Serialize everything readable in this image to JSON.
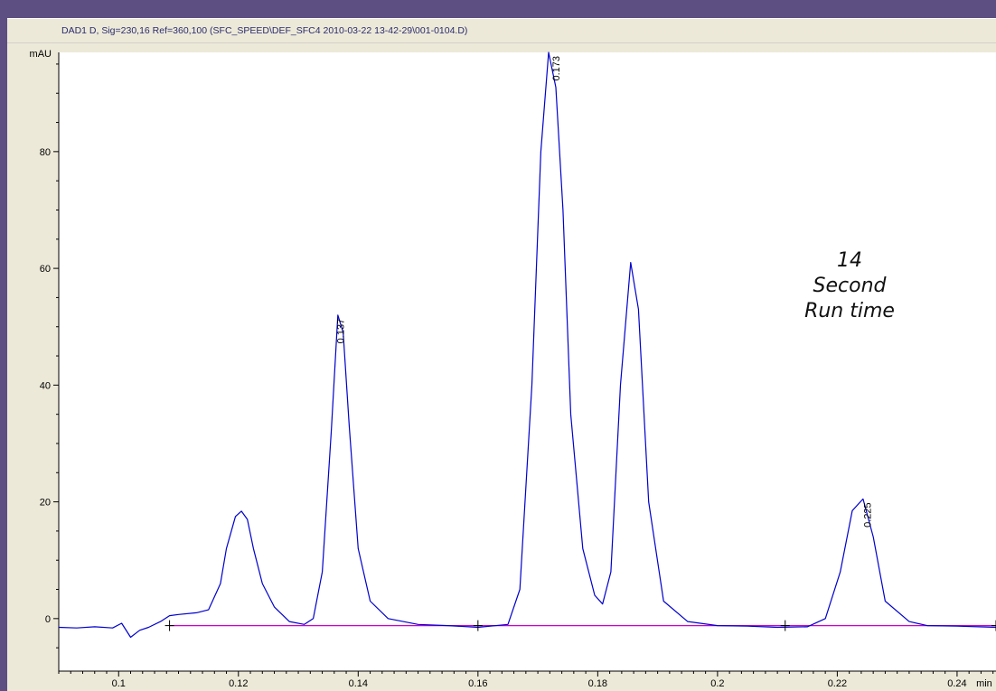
{
  "header": {
    "title": "DAD1 D, Sig=230,16 Ref=360,100 (SFC_SPEED\\DEF_SFC4 2010-03-22 13-42-29\\001-0104.D)"
  },
  "annotation": {
    "line1": "14",
    "line2": "Second",
    "line3": "Run time"
  },
  "chart_data": {
    "type": "line",
    "title": "DAD1 D, Sig=230,16 Ref=360,100 (SFC_SPEED\\DEF_SFC4 2010-03-22 13-42-29\\001-0104.D)",
    "xlabel": "min",
    "ylabel": "mAU",
    "xlim": [
      0.09,
      0.2465
    ],
    "ylim": [
      -9,
      97
    ],
    "x_ticks": [
      0.1,
      0.12,
      0.14,
      0.16,
      0.18,
      0.2,
      0.22,
      0.24
    ],
    "x_tick_labels": [
      "0.1",
      "0.12",
      "0.14",
      "0.16",
      "0.18",
      "0.2",
      "0.22",
      "0.24"
    ],
    "y_ticks": [
      0,
      20,
      40,
      60,
      80
    ],
    "y_tick_labels": [
      "0",
      "20",
      "40",
      "60",
      "80"
    ],
    "baseline_y": -1.2,
    "grid": false,
    "series": [
      {
        "color": "#0000cc",
        "x": [
          0.09,
          0.093,
          0.096,
          0.099,
          0.1005,
          0.102,
          0.1035,
          0.105,
          0.107,
          0.1085,
          0.11,
          0.113,
          0.115,
          0.117,
          0.118,
          0.1195,
          0.1205,
          0.1215,
          0.1225,
          0.124,
          0.126,
          0.1285,
          0.131,
          0.1325,
          0.134,
          0.1355,
          0.1366,
          0.1375,
          0.1385,
          0.14,
          0.142,
          0.145,
          0.15,
          0.155,
          0.16,
          0.165,
          0.167,
          0.169,
          0.1705,
          0.1718,
          0.173,
          0.1742,
          0.1755,
          0.1775,
          0.1795,
          0.1808,
          0.1822,
          0.1838,
          0.1855,
          0.1868,
          0.1885,
          0.191,
          0.195,
          0.2,
          0.205,
          0.21,
          0.215,
          0.218,
          0.2205,
          0.2225,
          0.2243,
          0.226,
          0.228,
          0.232,
          0.235,
          0.24,
          0.2465
        ],
        "y": [
          -1.5,
          -1.6,
          -1.4,
          -1.6,
          -0.8,
          -3.2,
          -2,
          -1.5,
          -0.5,
          0.5,
          0.7,
          1,
          1.5,
          6,
          12,
          17.5,
          18.4,
          17,
          12,
          6,
          2,
          -0.5,
          -1,
          0,
          8,
          32,
          52,
          49,
          33,
          12,
          3,
          0,
          -1,
          -1.2,
          -1.5,
          -1,
          5,
          40,
          80,
          97,
          91,
          70,
          35,
          12,
          4,
          2.5,
          8,
          40,
          61,
          53,
          20,
          3,
          -0.5,
          -1.2,
          -1.3,
          -1.5,
          -1.4,
          0,
          8,
          18.5,
          20.5,
          14,
          3,
          -0.5,
          -1.2,
          -1.3,
          -1.5
        ]
      },
      {
        "color": "#cc00cc",
        "x": [
          0.1085,
          0.2465
        ],
        "y": [
          -1.2,
          -1.2
        ]
      }
    ],
    "peak_labels": [
      {
        "x": 0.137,
        "y": 52,
        "text": "0.137"
      },
      {
        "x": 0.173,
        "y": 97,
        "text": "0.173"
      },
      {
        "x": 0.225,
        "y": 20.5,
        "text": "0.225"
      }
    ],
    "baseline_markers_x": [
      0.1085,
      0.16,
      0.2113,
      0.2465
    ]
  }
}
